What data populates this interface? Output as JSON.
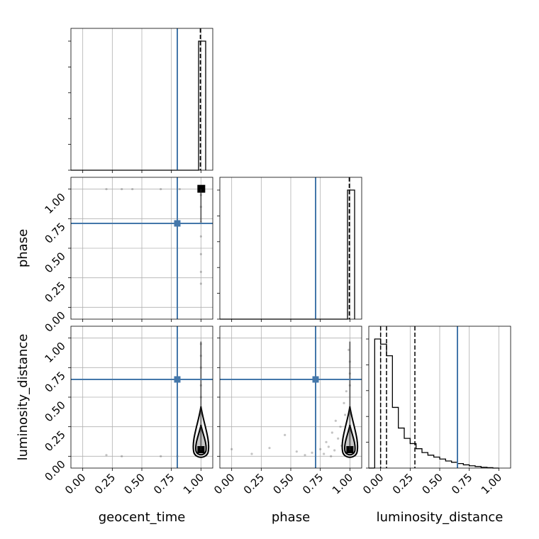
{
  "chart_data": {
    "type": "scatter",
    "subtype": "corner-plot",
    "parameters": [
      "geocent_time",
      "phase",
      "luminosity_distance"
    ],
    "ticks": [
      "0.00",
      "0.25",
      "0.50",
      "0.75",
      "1.00"
    ],
    "axis_range": [
      -0.1,
      1.1
    ],
    "grid": true,
    "truth": {
      "color": "#4477aa",
      "geocent_time": 0.8,
      "phase": 0.71,
      "luminosity_distance": 0.65
    },
    "histograms": {
      "geocent_time": {
        "bins": [
          [
            0.92,
            0.98,
            0.0
          ],
          [
            0.98,
            1.04,
            1.0
          ]
        ],
        "quantiles": [
          0.995,
          0.996,
          0.997
        ]
      },
      "phase": {
        "bins": [
          [
            0.94,
            0.98,
            0.0
          ],
          [
            0.98,
            1.04,
            1.0
          ]
        ],
        "quantiles": [
          0.995,
          0.996,
          0.997
        ]
      },
      "luminosity_distance": {
        "bins": [
          [
            -0.05,
            0.0,
            1.0
          ],
          [
            0.0,
            0.05,
            0.96
          ],
          [
            0.05,
            0.1,
            0.87
          ],
          [
            0.1,
            0.15,
            0.47
          ],
          [
            0.15,
            0.2,
            0.31
          ],
          [
            0.2,
            0.25,
            0.23
          ],
          [
            0.25,
            0.3,
            0.19
          ],
          [
            0.3,
            0.35,
            0.15
          ],
          [
            0.35,
            0.4,
            0.12
          ],
          [
            0.4,
            0.45,
            0.1
          ],
          [
            0.45,
            0.5,
            0.085
          ],
          [
            0.5,
            0.55,
            0.07
          ],
          [
            0.55,
            0.6,
            0.055
          ],
          [
            0.6,
            0.65,
            0.045
          ],
          [
            0.65,
            0.7,
            0.035
          ],
          [
            0.7,
            0.75,
            0.025
          ],
          [
            0.75,
            0.8,
            0.018
          ],
          [
            0.8,
            0.85,
            0.012
          ],
          [
            0.85,
            0.9,
            0.006
          ],
          [
            0.9,
            0.95,
            0.003
          ],
          [
            0.95,
            1.0,
            0.0
          ]
        ],
        "quantiles": [
          0.0,
          0.05,
          0.29
        ]
      }
    },
    "scatter": {
      "phase_vs_geocent_time": [
        [
          0.2,
          1.0
        ],
        [
          0.33,
          1.0
        ],
        [
          0.42,
          1.0
        ],
        [
          0.66,
          1.0
        ],
        [
          0.82,
          1.0
        ],
        [
          0.99,
          1.0
        ],
        [
          0.995,
          0.98
        ],
        [
          1.0,
          0.95
        ],
        [
          1.0,
          0.85
        ],
        [
          1.0,
          0.72
        ],
        [
          1.0,
          0.6
        ],
        [
          1.0,
          0.45
        ],
        [
          1.0,
          0.3
        ],
        [
          1.0,
          0.2
        ]
      ],
      "luminosity_distance_vs_geocent_time": [
        [
          0.2,
          0.01
        ],
        [
          0.33,
          0.0
        ],
        [
          0.66,
          0.0
        ],
        [
          0.8,
          0.0
        ],
        [
          1.0,
          0.95
        ],
        [
          1.0,
          0.85
        ],
        [
          1.0,
          0.75
        ],
        [
          1.0,
          0.6
        ],
        [
          1.0,
          0.5
        ],
        [
          1.0,
          0.4
        ],
        [
          1.0,
          0.35
        ]
      ],
      "luminosity_distance_vs_phase": [
        [
          0.0,
          0.06
        ],
        [
          0.17,
          0.02
        ],
        [
          0.32,
          0.07
        ],
        [
          0.45,
          0.18
        ],
        [
          0.55,
          0.04
        ],
        [
          0.62,
          0.01
        ],
        [
          0.68,
          0.03
        ],
        [
          0.75,
          0.06
        ],
        [
          0.78,
          0.02
        ],
        [
          0.8,
          0.12
        ],
        [
          0.82,
          0.08
        ],
        [
          0.84,
          0.0
        ],
        [
          0.85,
          0.2
        ],
        [
          0.87,
          0.05
        ],
        [
          0.88,
          0.3
        ],
        [
          0.9,
          0.15
        ],
        [
          0.92,
          0.25
        ],
        [
          0.93,
          0.09
        ],
        [
          0.95,
          0.45
        ],
        [
          0.96,
          0.35
        ],
        [
          0.97,
          0.55
        ],
        [
          0.98,
          0.18
        ],
        [
          0.99,
          0.9
        ],
        [
          1.0,
          0.8
        ],
        [
          1.0,
          0.7
        ],
        [
          1.0,
          0.6
        ],
        [
          1.0,
          0.4
        ]
      ]
    },
    "contours": {
      "phase_vs_geocent_time": {
        "center": [
          1.0,
          1.0
        ]
      },
      "luminosity_distance_vs_geocent_time": {
        "center": [
          1.0,
          0.05
        ]
      },
      "luminosity_distance_vs_phase": {
        "center": [
          1.0,
          0.05
        ]
      }
    }
  }
}
